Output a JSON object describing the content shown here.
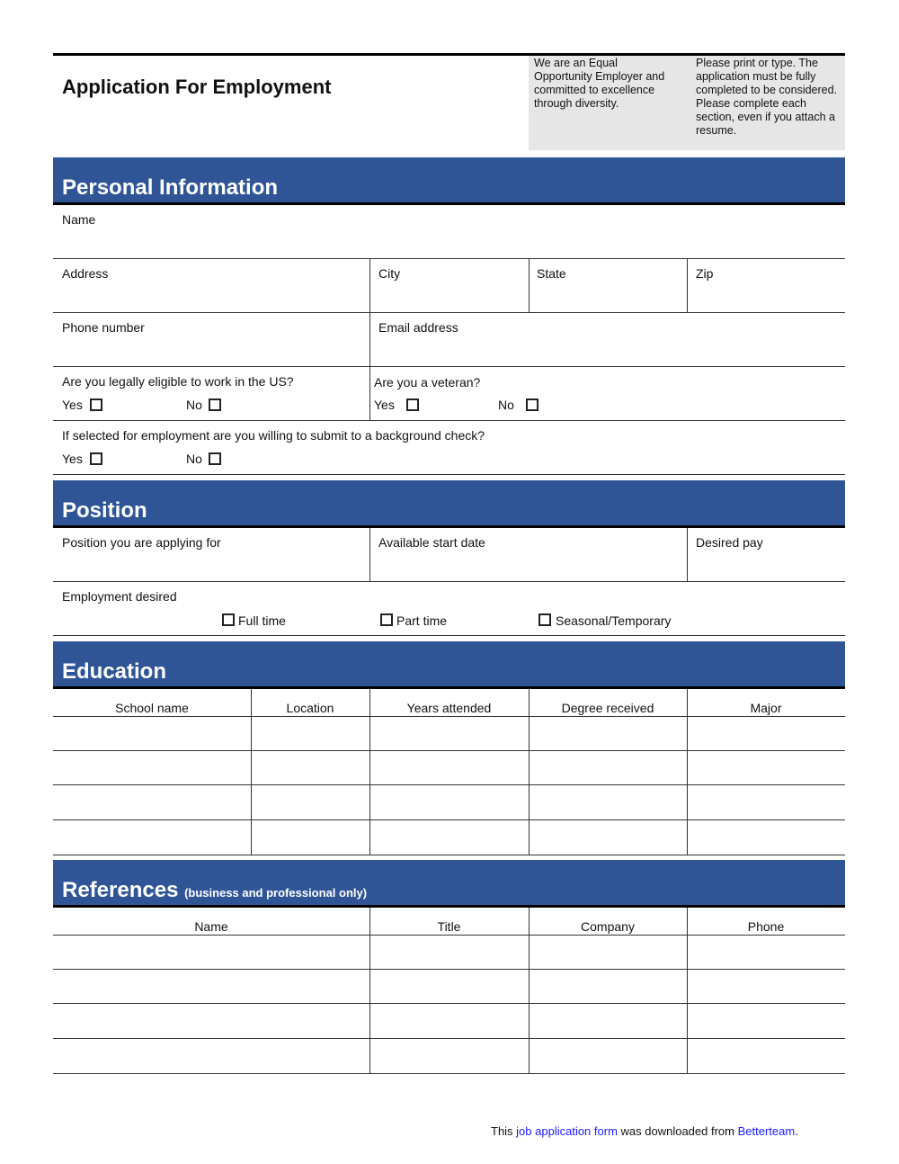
{
  "header": {
    "title": "Application For Employment",
    "eeo_note": "We are an Equal Opportunity Employer and committed to excellence through diversity.",
    "instructions": "Please print or type. The application must be fully completed to be considered. Please complete each section, even if you attach a resume."
  },
  "personal": {
    "title": "Personal Information",
    "name": "Name",
    "address": "Address",
    "city": "City",
    "state": "State",
    "zip": "Zip",
    "phone": "Phone number",
    "email": "Email address",
    "eligible": "Are you legally eligible to work in the US?",
    "veteran": "Are you a veteran?",
    "background": "If selected for employment are you willing to submit to a background check?",
    "yes": "Yes",
    "no": "No"
  },
  "position": {
    "title": "Position",
    "applying_for": "Position you are applying for",
    "start_date": "Available start date",
    "desired_pay": "Desired pay",
    "employment_desired": "Employment desired",
    "full_time": "Full time",
    "part_time": "Part time",
    "seasonal": "Seasonal/Temporary"
  },
  "education": {
    "title": "Education",
    "columns": [
      "School name",
      "Location",
      "Years attended",
      "Degree received",
      "Major"
    ]
  },
  "references": {
    "title": "References",
    "subtitle": "(business and professional only)",
    "columns": [
      "Name",
      "Title",
      "Company",
      "Phone"
    ]
  },
  "footer": {
    "prefix": "This ",
    "link1": "job application form",
    "middle": " was downloaded from ",
    "link2": "Betterteam",
    "suffix": "."
  },
  "colors": {
    "section_bar": "#2F5597",
    "note_bg": "#E6E6E6",
    "link": "#1a1aff"
  }
}
